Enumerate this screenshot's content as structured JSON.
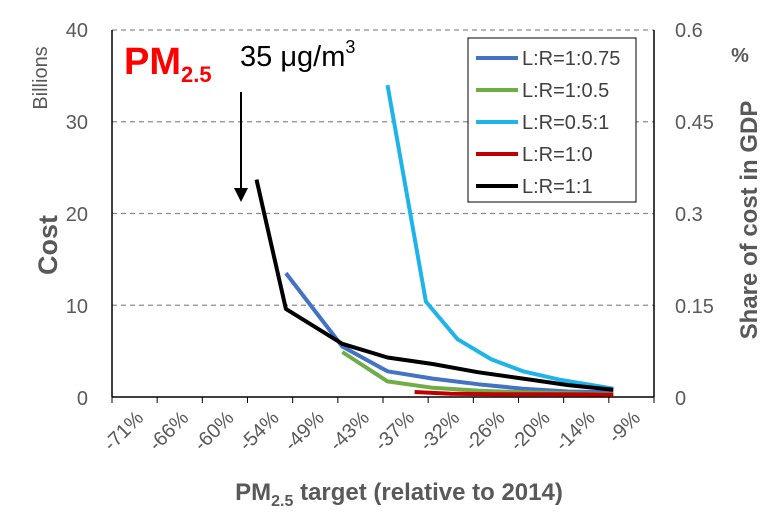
{
  "chart_data": {
    "type": "line",
    "title": "",
    "annotation": {
      "pm_label": "PM",
      "pm_subscript": "2.5",
      "target_value": "35 μg/m",
      "target_unit_sup": "3"
    },
    "x_label": {
      "main": "PM",
      "sub": "2.5",
      "rest": " target (relative to 2014)"
    },
    "y_left_label": "Cost",
    "y_left_unit": "Billions",
    "y_right_label": "Share of cost in GDP",
    "y_right_unit": "%",
    "ylim_left": [
      0,
      40
    ],
    "ylim_right": [
      0,
      0.6
    ],
    "y_left_ticks": [
      "0",
      "10",
      "20",
      "30",
      "40"
    ],
    "y_right_ticks": [
      "0",
      "0.15",
      "0.3",
      "0.45",
      "0.6"
    ],
    "categories": [
      "-71%",
      "-66%",
      "-60%",
      "-54%",
      "-49%",
      "-43%",
      "-37%",
      "-32%",
      "-26%",
      "-20%",
      "-14%",
      "-9%"
    ],
    "gridlines": true,
    "legend_position": "top-right",
    "series": [
      {
        "name": "L:R=1:0.75",
        "color": "#4472C4",
        "points": [
          [
            3.35,
            13.5
          ],
          [
            4.6,
            5.5
          ],
          [
            5.6,
            2.8
          ],
          [
            6.6,
            2.0
          ],
          [
            7.6,
            1.4
          ],
          [
            8.6,
            0.9
          ],
          [
            9.6,
            0.6
          ],
          [
            10.6,
            0.5
          ]
        ]
      },
      {
        "name": "L:R=1:0.5",
        "color": "#70AD47",
        "points": [
          [
            4.6,
            4.9
          ],
          [
            5.6,
            1.7
          ],
          [
            6.6,
            1.0
          ],
          [
            7.6,
            0.7
          ],
          [
            8.6,
            0.5
          ],
          [
            9.6,
            0.4
          ],
          [
            10.6,
            0.3
          ]
        ]
      },
      {
        "name": "L:R=0.5:1",
        "color": "#1EB4EA",
        "points": [
          [
            5.6,
            34.0
          ],
          [
            6.45,
            10.4
          ],
          [
            7.15,
            6.3
          ],
          [
            7.9,
            4.1
          ],
          [
            8.6,
            2.8
          ],
          [
            9.4,
            1.9
          ],
          [
            10.25,
            1.2
          ],
          [
            10.6,
            0.9
          ]
        ]
      },
      {
        "name": "L:R=1:0",
        "color": "#C00000",
        "points": [
          [
            6.2,
            0.55
          ],
          [
            7.0,
            0.35
          ],
          [
            8.0,
            0.3
          ],
          [
            9.0,
            0.3
          ],
          [
            10.0,
            0.28
          ],
          [
            10.6,
            0.25
          ]
        ]
      },
      {
        "name": "L:R=1:1",
        "color": "#000000",
        "points": [
          [
            2.7,
            23.7
          ],
          [
            3.35,
            9.6
          ],
          [
            4.6,
            5.8
          ],
          [
            5.6,
            4.3
          ],
          [
            6.6,
            3.6
          ],
          [
            7.6,
            2.7
          ],
          [
            8.6,
            2.0
          ],
          [
            9.6,
            1.3
          ],
          [
            10.6,
            0.8
          ]
        ]
      }
    ]
  }
}
